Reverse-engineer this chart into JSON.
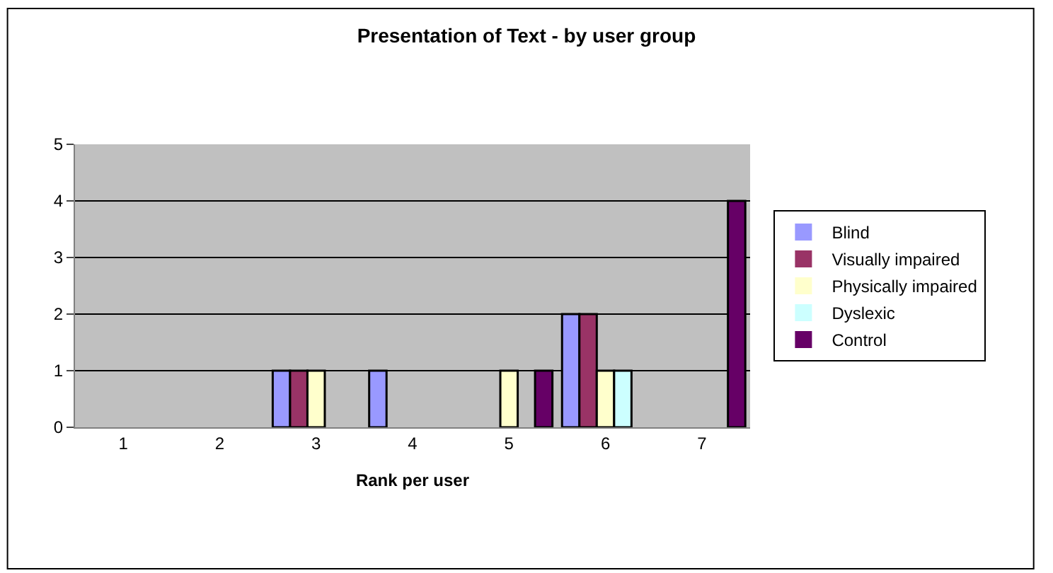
{
  "chart_data": {
    "type": "bar",
    "title": "Presentation of Text - by user group",
    "xlabel": "Rank per user",
    "categories": [
      "1",
      "2",
      "3",
      "4",
      "5",
      "6",
      "7"
    ],
    "series": [
      {
        "name": "Blind",
        "color": "#9999ff",
        "values": [
          0,
          0,
          1,
          1,
          0,
          2,
          0
        ]
      },
      {
        "name": "Visually impaired",
        "color": "#993366",
        "values": [
          0,
          0,
          1,
          0,
          0,
          2,
          0
        ]
      },
      {
        "name": "Physically impaired",
        "color": "#ffffcc",
        "values": [
          0,
          0,
          1,
          0,
          1,
          1,
          0
        ]
      },
      {
        "name": "Dyslexic",
        "color": "#ccffff",
        "values": [
          0,
          0,
          0,
          0,
          0,
          1,
          0
        ]
      },
      {
        "name": "Control",
        "color": "#660066",
        "values": [
          0,
          0,
          0,
          0,
          1,
          0,
          4
        ]
      }
    ],
    "ylim": [
      0,
      5
    ],
    "yticks": [
      0,
      1,
      2,
      3,
      4,
      5
    ],
    "grid": "y",
    "legend": "right"
  }
}
